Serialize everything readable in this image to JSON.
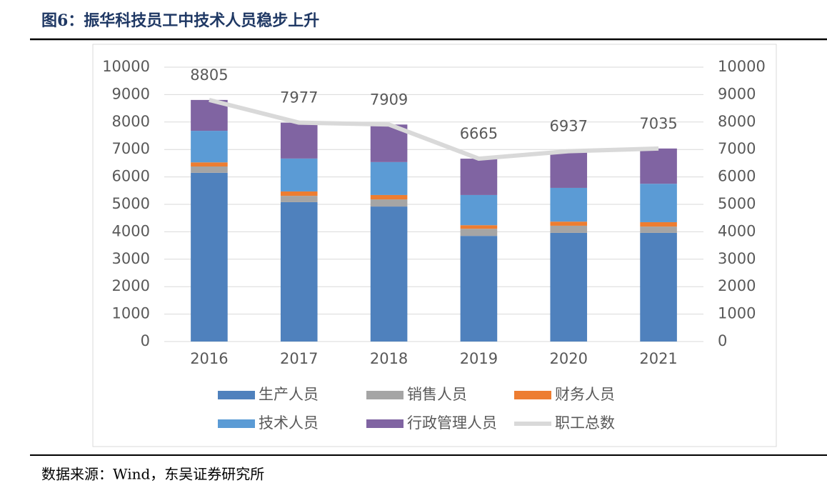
{
  "chart_data": {
    "type": "stacked-bar-line",
    "title": "图6：振华科技员工中技术人员稳步上升",
    "categories": [
      "2016",
      "2017",
      "2018",
      "2019",
      "2020",
      "2021"
    ],
    "series": [
      {
        "name": "生产人员",
        "color": "#4f81bd",
        "type": "bar",
        "values": [
          6150,
          5080,
          4920,
          3850,
          3960,
          3960
        ]
      },
      {
        "name": "销售人员",
        "color": "#a5a5a5",
        "type": "bar",
        "values": [
          230,
          230,
          260,
          260,
          260,
          230
        ]
      },
      {
        "name": "财务人员",
        "color": "#ed7d31",
        "type": "bar",
        "values": [
          150,
          160,
          160,
          130,
          150,
          160
        ]
      },
      {
        "name": "技术人员",
        "color": "#5b9bd5",
        "type": "bar",
        "values": [
          1150,
          1200,
          1200,
          1100,
          1230,
          1400
        ]
      },
      {
        "name": "行政管理人员",
        "color": "#8064a2",
        "type": "bar",
        "values": [
          1125,
          1307,
          1369,
          1325,
          1337,
          1285
        ]
      },
      {
        "name": "职工总数",
        "color": "#d9d9d9",
        "type": "line",
        "axis": "y2",
        "values": [
          8805,
          7977,
          7909,
          6665,
          6937,
          7035
        ]
      }
    ],
    "ylim": [
      0,
      10000
    ],
    "yticks": [
      0,
      1000,
      2000,
      3000,
      4000,
      5000,
      6000,
      7000,
      8000,
      9000,
      10000
    ],
    "y2lim": [
      0,
      10000
    ],
    "y2ticks": [
      0,
      1000,
      2000,
      3000,
      4000,
      5000,
      6000,
      7000,
      8000,
      9000,
      10000
    ],
    "grid": true
  },
  "source": "数据来源：Wind，东吴证券研究所"
}
